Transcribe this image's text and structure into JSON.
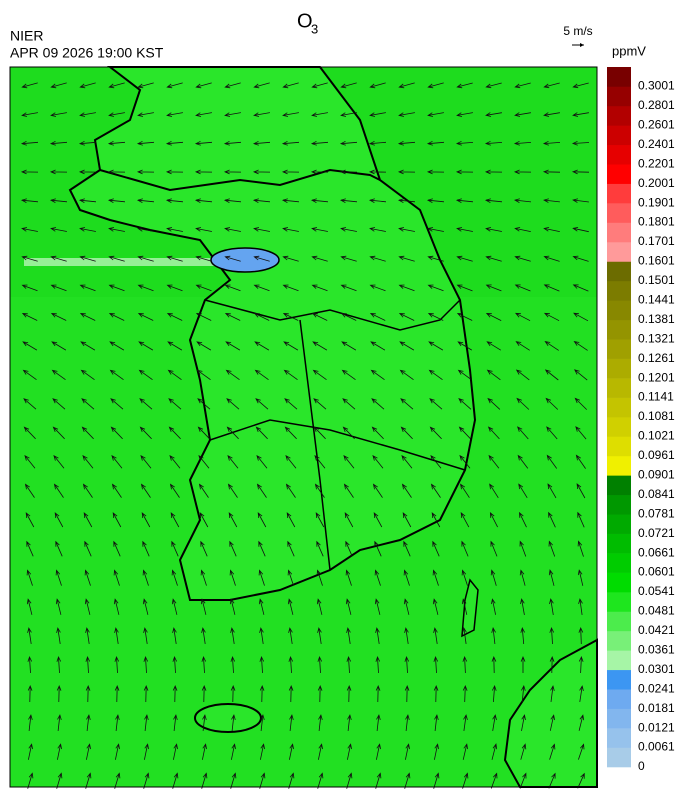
{
  "header": {
    "title": "O",
    "title_sub": "3",
    "agency": "NIER",
    "datetime": "APR 09 2026 19:00 KST",
    "vector_scale": "5 m/s"
  },
  "legend": {
    "unit": "ppmV",
    "levels": [
      {
        "label": "0",
        "color": "#a8cce8"
      },
      {
        "label": "0.0061",
        "color": "#96c2ec"
      },
      {
        "label": "0.0121",
        "color": "#82b6ee"
      },
      {
        "label": "0.0181",
        "color": "#6eaaf0"
      },
      {
        "label": "0.0241",
        "color": "#3c96f2"
      },
      {
        "label": "0.0301",
        "color": "#a6f5a6"
      },
      {
        "label": "0.0361",
        "color": "#78f078"
      },
      {
        "label": "0.0421",
        "color": "#4cec4c"
      },
      {
        "label": "0.0481",
        "color": "#1ee61e"
      },
      {
        "label": "0.0541",
        "color": "#00dc00"
      },
      {
        "label": "0.0601",
        "color": "#00cc00"
      },
      {
        "label": "0.0661",
        "color": "#00bc00"
      },
      {
        "label": "0.0721",
        "color": "#00aa00"
      },
      {
        "label": "0.0781",
        "color": "#009800"
      },
      {
        "label": "0.0841",
        "color": "#008000"
      },
      {
        "label": "0.0901",
        "color": "#f0f000"
      },
      {
        "label": "0.0961",
        "color": "#dede00"
      },
      {
        "label": "0.1021",
        "color": "#d0d000"
      },
      {
        "label": "0.1081",
        "color": "#c4c400"
      },
      {
        "label": "0.1141",
        "color": "#b8b800"
      },
      {
        "label": "0.1201",
        "color": "#acac00"
      },
      {
        "label": "0.1261",
        "color": "#a0a000"
      },
      {
        "label": "0.1321",
        "color": "#949400"
      },
      {
        "label": "0.1381",
        "color": "#888800"
      },
      {
        "label": "0.1441",
        "color": "#7c7c00"
      },
      {
        "label": "0.1501",
        "color": "#6c6c00"
      },
      {
        "label": "0.1601",
        "color": "#ff9a9a"
      },
      {
        "label": "0.1701",
        "color": "#ff7c7c"
      },
      {
        "label": "0.1801",
        "color": "#ff5c5c"
      },
      {
        "label": "0.1901",
        "color": "#ff3c3c"
      },
      {
        "label": "0.2001",
        "color": "#ff0000"
      },
      {
        "label": "0.2201",
        "color": "#e60000"
      },
      {
        "label": "0.2401",
        "color": "#cc0000"
      },
      {
        "label": "0.2601",
        "color": "#b20000"
      },
      {
        "label": "0.2801",
        "color": "#960000"
      },
      {
        "label": "0.3001",
        "color": "#780000"
      }
    ]
  }
}
